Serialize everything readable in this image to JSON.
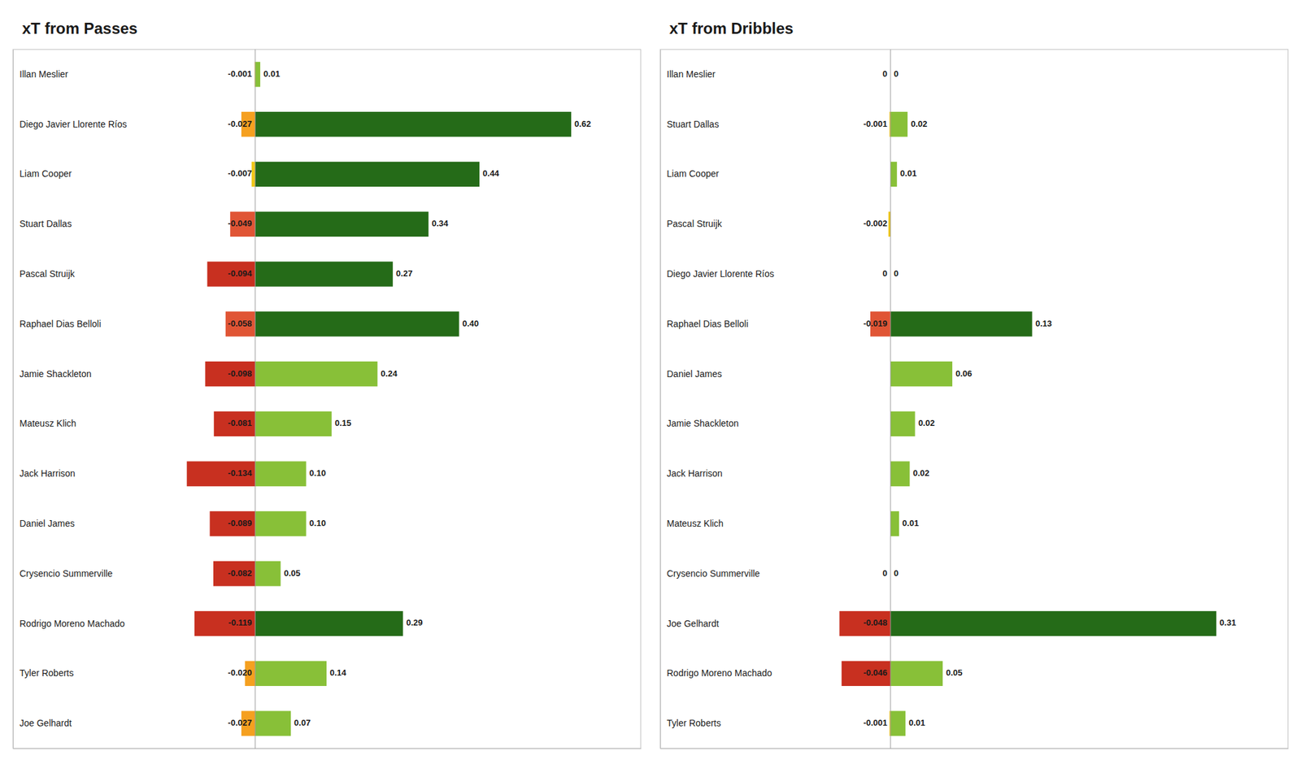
{
  "chart_data": [
    {
      "type": "bar",
      "orientation": "horizontal",
      "stacked": true,
      "data_labels": true,
      "grid": false,
      "tick_labels": "y",
      "title": "xT from Passes",
      "categories": [
        "Illan Meslier",
        "Diego Javier Llorente Ríos",
        "Liam Cooper",
        "Stuart Dallas",
        "Pascal Struijk",
        "Raphael Dias Belloli",
        "Jamie Shackleton",
        "Mateusz Klich",
        "Jack Harrison",
        "Daniel James",
        "Crysencio Summerville",
        "Rodrigo Moreno Machado",
        "Tyler Roberts",
        "Joe Gelhardt"
      ],
      "series": [
        {
          "values": [
            -0.001,
            -0.027,
            -0.007,
            -0.049,
            -0.094,
            -0.058,
            -0.098,
            -0.081,
            -0.134,
            -0.089,
            -0.082,
            -0.119,
            -0.02,
            -0.027
          ],
          "value_labels": [
            "-0.001",
            "-0.027",
            "-0.007",
            "-0.049",
            "-0.094",
            "-0.058",
            "-0.098",
            "-0.081",
            "-0.134",
            "-0.089",
            "-0.082",
            "-0.119",
            "-0.020",
            "-0.027"
          ],
          "colors": [
            "#f0c818",
            "#f5a020",
            "#f0c818",
            "#e05535",
            "#c83020",
            "#e05535",
            "#c83020",
            "#c83020",
            "#c83020",
            "#c83020",
            "#c83020",
            "#c83020",
            "#f5a020",
            "#f5a020"
          ]
        },
        {
          "values": [
            0.01,
            0.62,
            0.44,
            0.34,
            0.27,
            0.4,
            0.24,
            0.15,
            0.1,
            0.1,
            0.05,
            0.29,
            0.14,
            0.07
          ],
          "value_labels": [
            "0.01",
            "0.62",
            "0.44",
            "0.34",
            "0.27",
            "0.40",
            "0.24",
            "0.15",
            "0.10",
            "0.10",
            "0.05",
            "0.29",
            "0.14",
            "0.07"
          ],
          "colors": [
            "#88c038",
            "#256b18",
            "#256b18",
            "#256b18",
            "#256b18",
            "#256b18",
            "#88c038",
            "#88c038",
            "#88c038",
            "#88c038",
            "#88c038",
            "#256b18",
            "#88c038",
            "#88c038"
          ]
        }
      ],
      "xlim": [
        -0.475,
        0.7564
      ],
      "xticks": []
    },
    {
      "type": "bar",
      "orientation": "horizontal",
      "stacked": true,
      "data_labels": true,
      "grid": false,
      "tick_labels": "y",
      "title": "xT from Dribbles",
      "categories": [
        "Illan Meslier",
        "Stuart Dallas",
        "Liam Cooper",
        "Pascal Struijk",
        "Diego Javier Llorente Ríos",
        "Raphael Dias Belloli",
        "Daniel James",
        "Jamie Shackleton",
        "Jack Harrison",
        "Mateusz Klich",
        "Crysencio Summerville",
        "Joe Gelhardt",
        "Rodrigo Moreno Machado",
        "Tyler Roberts"
      ],
      "series": [
        {
          "values": [
            0,
            -0.001,
            0,
            -0.002,
            0,
            -0.019,
            0,
            0,
            0,
            0,
            0,
            -0.048,
            -0.046,
            -0.001
          ],
          "value_labels": [
            "0",
            "-0.001",
            null,
            "-0.002",
            "0",
            "-0.019",
            null,
            null,
            null,
            null,
            "0",
            "-0.048",
            "-0.046",
            "-0.001"
          ],
          "colors": [
            "#f0c818",
            "#f0c818",
            "#f0c818",
            "#f0c818",
            "#f0c818",
            "#e05535",
            "#f0c818",
            "#f0c818",
            "#f0c818",
            "#f0c818",
            "#f0c818",
            "#c83020",
            "#c83020",
            "#f0c818"
          ]
        },
        {
          "values": [
            0,
            0.016,
            0.006,
            0,
            0,
            0.133,
            0.058,
            0.023,
            0.018,
            0.008,
            0,
            0.306,
            0.049,
            0.014
          ],
          "value_labels": [
            "0",
            "0.02",
            "0.01",
            null,
            "0",
            "0.13",
            "0.06",
            "0.02",
            "0.02",
            "0.01",
            "0",
            "0.31",
            "0.05",
            "0.01"
          ],
          "colors": [
            "#88c038",
            "#88c038",
            "#88c038",
            "#88c038",
            "#88c038",
            "#256b18",
            "#88c038",
            "#88c038",
            "#88c038",
            "#88c038",
            "#88c038",
            "#256b18",
            "#88c038",
            "#88c038"
          ]
        }
      ],
      "xlim": [
        -0.2163,
        0.37332
      ],
      "xticks": []
    }
  ]
}
